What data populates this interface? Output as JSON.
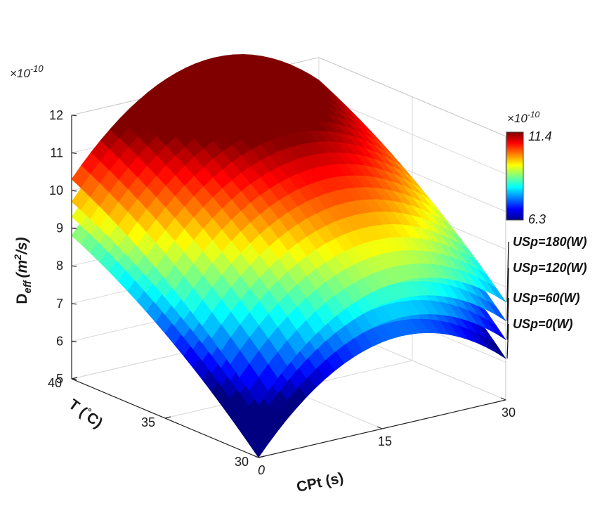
{
  "chart_data": {
    "type": "surface3d",
    "z_axis": {
      "label_main": "D",
      "label_sub": "eff",
      "label_unit_pre": "(m",
      "label_unit_sup": "2",
      "label_unit_post": "/s)",
      "exponent_prefix": "×10",
      "exponent_power": "-10",
      "ticks": [
        "5",
        "6",
        "7",
        "8",
        "9",
        "10",
        "11",
        "12"
      ],
      "range": [
        5,
        12
      ]
    },
    "t_axis": {
      "label_pre": "T (",
      "label_deg": "°",
      "label_post": "C)",
      "ticks": [
        "40",
        "35",
        "30"
      ],
      "range": [
        30,
        40
      ]
    },
    "cpt_axis": {
      "label": "CPt (s)",
      "ticks": [
        "0",
        "15",
        "30"
      ],
      "range": [
        0,
        30
      ]
    },
    "colorbar": {
      "exponent_prefix": "×10",
      "exponent_power": "-10",
      "max_label": "11.4",
      "min_label": "6.3",
      "min": 6.3,
      "max": 11.4,
      "colormap": "jet"
    },
    "series": [
      {
        "name": "USp=0(W)",
        "power": 0,
        "corners": {
          "T30_CPt0": 5.0,
          "T40_CPt0": 8.8,
          "T30_CPt30": 6.1,
          "T40_CPt30": 10.0
        }
      },
      {
        "name": "USp=60(W)",
        "power": 60,
        "corners": {
          "T30_CPt0": 5.5,
          "T40_CPt0": 9.3,
          "T30_CPt30": 6.6,
          "T40_CPt30": 10.5
        }
      },
      {
        "name": "USp=120(W)",
        "power": 120,
        "corners": {
          "T30_CPt0": 6.0,
          "T40_CPt0": 9.7,
          "T30_CPt30": 7.1,
          "T40_CPt30": 11.0
        }
      },
      {
        "name": "USp=180(W)",
        "power": 180,
        "corners": {
          "T30_CPt0": 6.4,
          "T40_CPt0": 10.3,
          "T30_CPt30": 7.6,
          "T40_CPt30": 11.4
        }
      }
    ],
    "grid": true
  }
}
